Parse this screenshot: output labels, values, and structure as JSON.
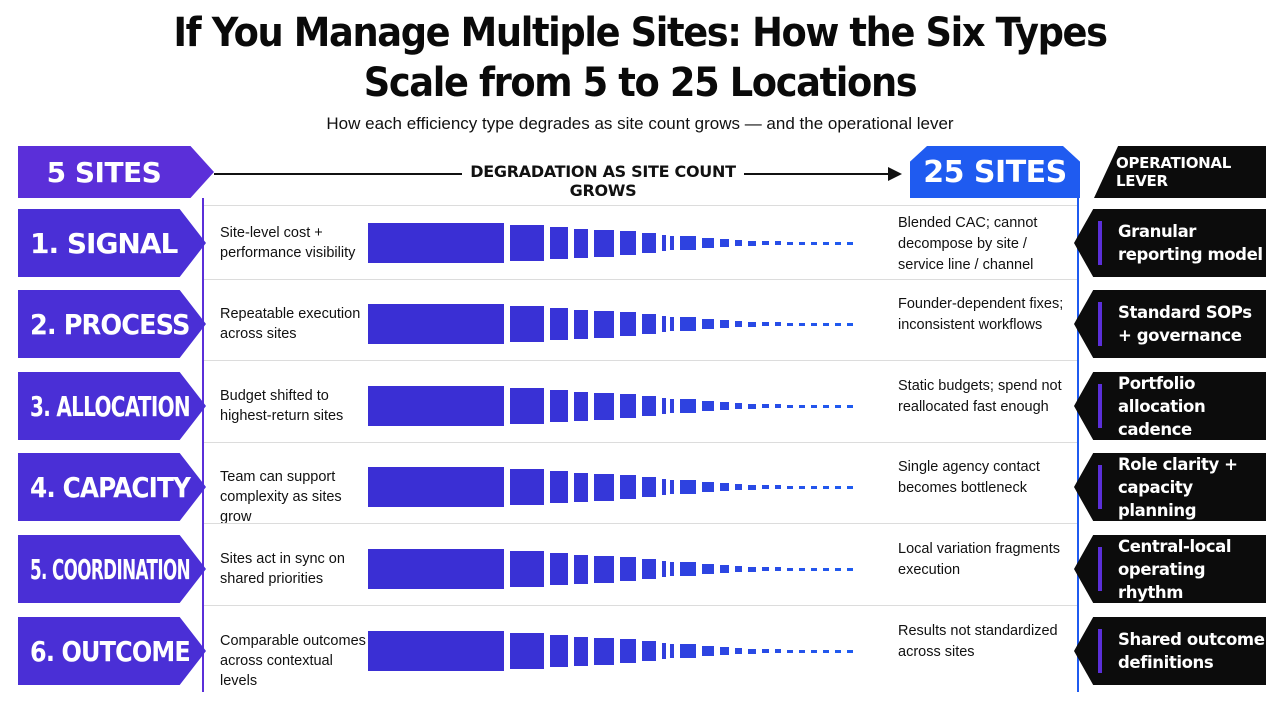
{
  "title_line1": "If You Manage Multiple Sites: How the Six Types",
  "title_line2": "Scale from 5 to 25 Locations",
  "subtitle": "How each efficiency type degrades as site count grows — and the operational lever",
  "header": {
    "left": "5 SITES",
    "middle": "DEGRADATION AS SITE COUNT GROWS",
    "right": "25 SITES",
    "lever": "OPERATIONAL LEVER"
  },
  "colors": {
    "purple": "#4a2fd6",
    "blue": "#1f5bf0",
    "black": "#0c0c0c"
  },
  "rows": [
    {
      "label": "1. SIGNAL",
      "start": "Site-level cost + performance visibility",
      "end": "Blended CAC; cannot decompose by site / service line / channel",
      "lever": "Granular reporting model"
    },
    {
      "label": "2. PROCESS",
      "start": "Repeatable execution across sites",
      "end": "Founder-dependent fixes; inconsistent workflows",
      "lever": "Standard SOPs + governance"
    },
    {
      "label": "3. ALLOCATION",
      "start": "Budget shifted to highest-return sites",
      "end": "Static budgets; spend not reallocated fast enough",
      "lever": "Portfolio allocation cadence"
    },
    {
      "label": "4. CAPACITY",
      "start": "Team can support complexity as sites grow",
      "end": "Single agency contact becomes bottleneck",
      "lever": "Role clarity + capacity planning"
    },
    {
      "label": "5. COORDINATION",
      "start": "Sites act in sync on shared priorities",
      "end": "Local variation fragments execution",
      "lever": "Central-local operating rhythm"
    },
    {
      "label": "6. OUTCOME",
      "start": "Comparable outcomes across contextual levels",
      "end": "Results not standardized across sites",
      "lever": "Shared outcome definitions"
    }
  ]
}
